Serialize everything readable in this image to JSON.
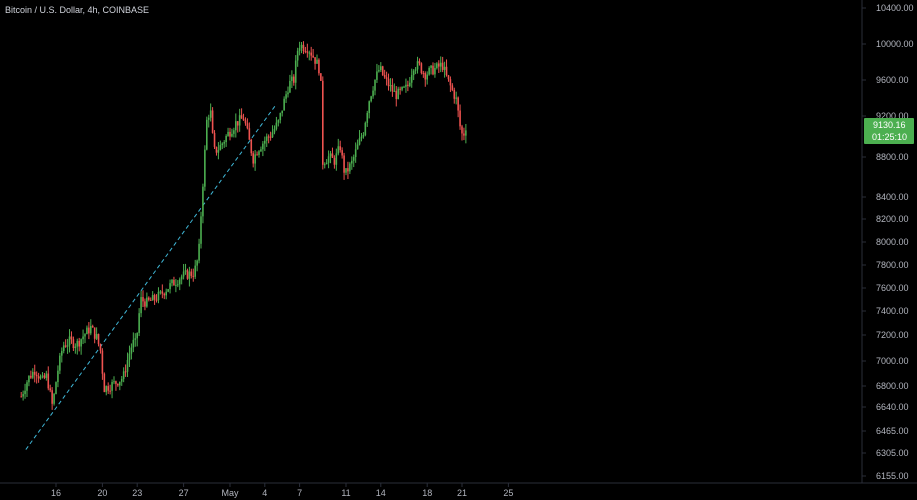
{
  "header": {
    "symbol_title": "Bitcoin / U.S. Dollar, 4h, COINBASE"
  },
  "colors": {
    "up": "#26a69a",
    "upBody": "#4caf50",
    "down": "#ef5350",
    "trendline": "#3fb6d6",
    "badge": "#4caf50",
    "background": "#000000"
  },
  "price_badge": {
    "price": "9130.16",
    "countdown": "01:25:10"
  },
  "chart_data": {
    "type": "candlestick",
    "title": "Bitcoin / U.S. Dollar, 4h, COINBASE",
    "y_scale": "log",
    "ylim": [
      6100,
      10450
    ],
    "y_ticks": [
      "10400.00",
      "10000.00",
      "9600.00",
      "9200.00",
      "8800.00",
      "8400.00",
      "8200.00",
      "8000.00",
      "7800.00",
      "7600.00",
      "7400.00",
      "7200.00",
      "7000.00",
      "6800.00",
      "6640.00",
      "6465.00",
      "6305.00",
      "6155.00"
    ],
    "x_ticks": [
      "16",
      "20",
      "23",
      "27",
      "May",
      "4",
      "7",
      "11",
      "14",
      "18",
      "21",
      "25"
    ],
    "trendline": {
      "start": {
        "day": 13.4,
        "price": 6330
      },
      "end": {
        "day": 35.0,
        "price": 9330
      }
    },
    "path_points": [
      [
        13.0,
        6720
      ],
      [
        13.6,
        6860
      ],
      [
        14.2,
        6930
      ],
      [
        14.8,
        6840
      ],
      [
        15.2,
        6880
      ],
      [
        15.7,
        6640
      ],
      [
        16.1,
        6900
      ],
      [
        16.6,
        7120
      ],
      [
        17.2,
        7150
      ],
      [
        17.8,
        7130
      ],
      [
        18.4,
        7200
      ],
      [
        19.0,
        7260
      ],
      [
        19.5,
        7180
      ],
      [
        19.9,
        7060
      ],
      [
        20.1,
        6780
      ],
      [
        20.6,
        6800
      ],
      [
        21.2,
        6830
      ],
      [
        21.8,
        6870
      ],
      [
        22.2,
        7020
      ],
      [
        22.6,
        7140
      ],
      [
        22.9,
        7130
      ],
      [
        23.3,
        7500
      ],
      [
        23.8,
        7470
      ],
      [
        24.4,
        7500
      ],
      [
        25.0,
        7540
      ],
      [
        25.6,
        7600
      ],
      [
        26.2,
        7650
      ],
      [
        26.8,
        7700
      ],
      [
        27.4,
        7720
      ],
      [
        27.9,
        7730
      ],
      [
        28.3,
        7880
      ],
      [
        28.7,
        8600
      ],
      [
        29.0,
        9150
      ],
      [
        29.3,
        9280
      ],
      [
        29.6,
        8850
      ],
      [
        30.1,
        8890
      ],
      [
        30.8,
        9020
      ],
      [
        31.5,
        9130
      ],
      [
        32.2,
        9180
      ],
      [
        32.6,
        8980
      ],
      [
        33.0,
        8780
      ],
      [
        33.4,
        8880
      ],
      [
        34.0,
        8960
      ],
      [
        34.6,
        9030
      ],
      [
        35.2,
        9140
      ],
      [
        35.7,
        9380
      ],
      [
        36.1,
        9560
      ],
      [
        36.5,
        9600
      ],
      [
        36.9,
        10000
      ],
      [
        37.3,
        9970
      ],
      [
        37.7,
        9960
      ],
      [
        38.1,
        9880
      ],
      [
        38.5,
        9780
      ],
      [
        38.8,
        9690
      ],
      [
        39.0,
        8750
      ],
      [
        39.5,
        8800
      ],
      [
        40.0,
        8760
      ],
      [
        40.5,
        8900
      ],
      [
        40.9,
        8620
      ],
      [
        41.5,
        8740
      ],
      [
        42.0,
        8900
      ],
      [
        42.5,
        9050
      ],
      [
        43.0,
        9380
      ],
      [
        43.5,
        9600
      ],
      [
        43.9,
        9730
      ],
      [
        44.3,
        9620
      ],
      [
        44.8,
        9520
      ],
      [
        45.3,
        9430
      ],
      [
        45.8,
        9470
      ],
      [
        46.3,
        9520
      ],
      [
        46.8,
        9760
      ],
      [
        47.3,
        9760
      ],
      [
        47.8,
        9660
      ],
      [
        48.3,
        9700
      ],
      [
        48.8,
        9730
      ],
      [
        49.3,
        9770
      ],
      [
        49.7,
        9620
      ],
      [
        50.1,
        9500
      ],
      [
        50.5,
        9380
      ],
      [
        50.9,
        9040
      ],
      [
        51.1,
        9000
      ],
      [
        51.4,
        9130
      ]
    ]
  }
}
